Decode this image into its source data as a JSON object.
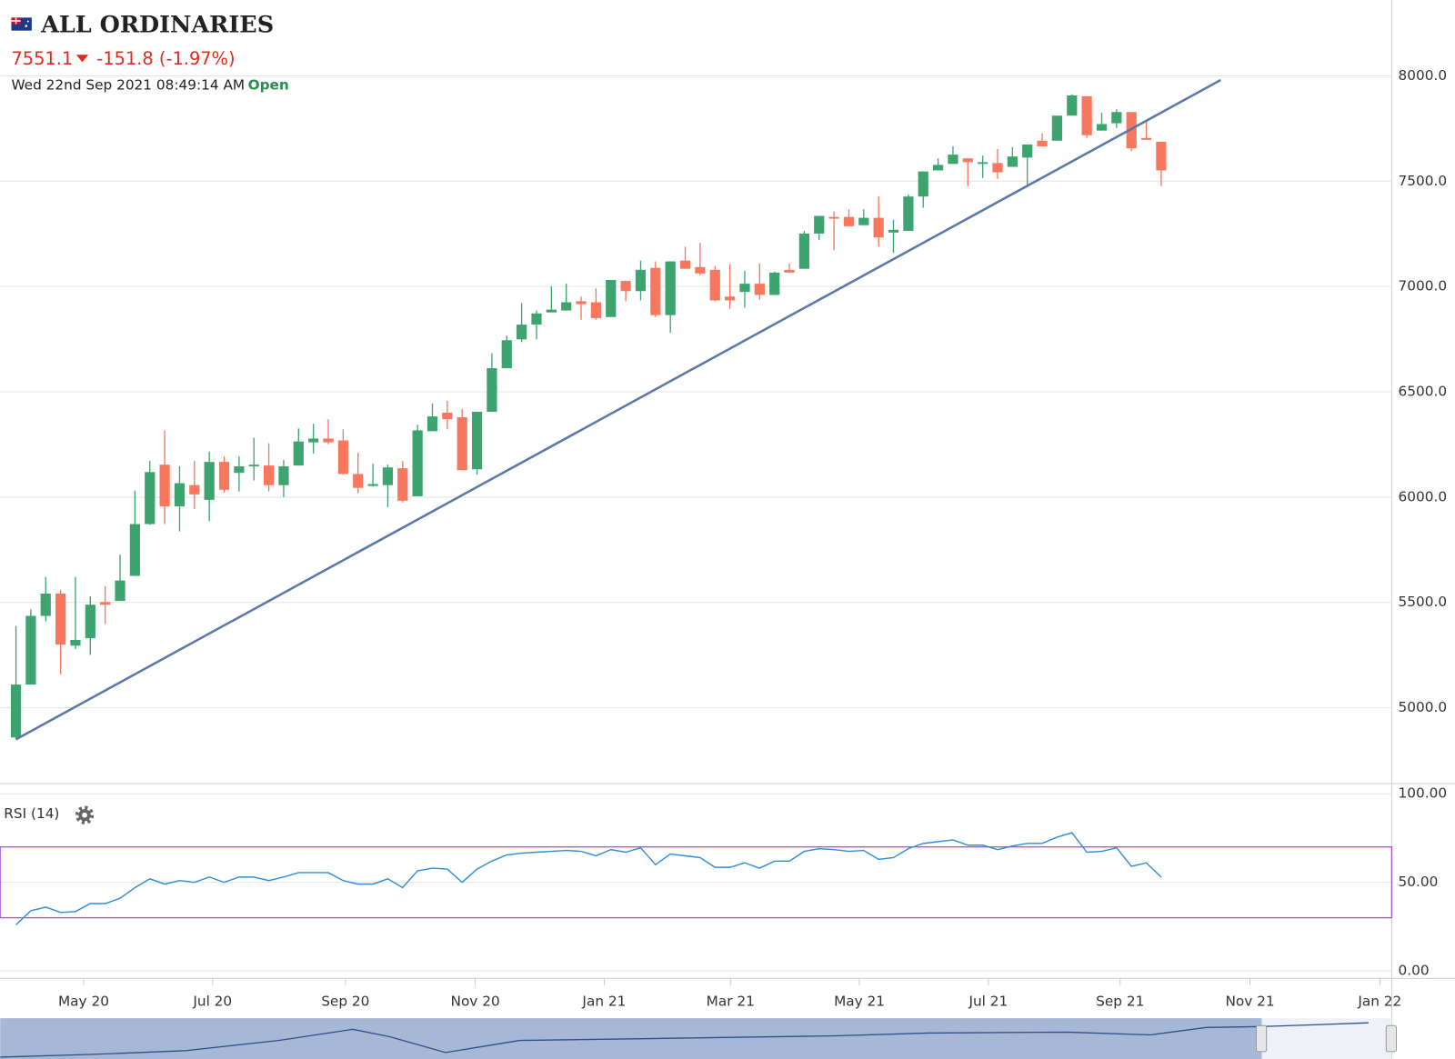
{
  "header": {
    "title": "ALL ORDINARIES",
    "price": "7551.1",
    "change": "-151.8 (-1.97%)",
    "timestamp": "Wed 22nd Sep 2021 08:49:14 AM",
    "status": "Open"
  },
  "chart_data": [
    {
      "type": "candlestick",
      "up_color": "#3ea46f",
      "down_color": "#f7775f",
      "open": [
        4859,
        5110,
        5436,
        5542,
        5295,
        5330,
        5502,
        5507,
        5626,
        5872,
        6154,
        5956,
        6057,
        5987,
        6167,
        6115,
        6146,
        6150,
        6057,
        6150,
        6260,
        6278,
        6269,
        6110,
        6053,
        6057,
        6137,
        6004,
        6313,
        6401,
        6379,
        6132,
        6405,
        6612,
        6749,
        6819,
        6877,
        6886,
        6930,
        6925,
        6855,
        7026,
        6978,
        7088,
        6864,
        7123,
        7092,
        7079,
        6952,
        6974,
        7013,
        6960,
        7079,
        7084,
        7251,
        7330,
        7330,
        7291,
        7326,
        7256,
        7264,
        7427,
        7551,
        7582,
        7608,
        7582,
        7586,
        7568,
        7612,
        7692,
        7692,
        7811,
        7903,
        7740,
        7775,
        7828,
        7705,
        7687
      ],
      "high": [
        5388,
        5467,
        5621,
        5560,
        5621,
        5529,
        5577,
        5727,
        6031,
        6172,
        6317,
        6146,
        6172,
        6216,
        6194,
        6194,
        6282,
        6256,
        6176,
        6326,
        6348,
        6370,
        6322,
        6212,
        6159,
        6154,
        6172,
        6344,
        6445,
        6458,
        6418,
        6405,
        6683,
        6767,
        6921,
        6886,
        7000,
        7013,
        6952,
        6991,
        7031,
        7026,
        7123,
        7119,
        7119,
        7189,
        7207,
        7097,
        7106,
        7075,
        7110,
        7070,
        7110,
        7264,
        7335,
        7357,
        7366,
        7366,
        7427,
        7317,
        7436,
        7546,
        7608,
        7665,
        7608,
        7621,
        7652,
        7661,
        7674,
        7727,
        7811,
        7912,
        7903,
        7824,
        7841,
        7828,
        7780,
        7687
      ],
      "low": [
        4850,
        5110,
        5410,
        5159,
        5278,
        5251,
        5397,
        5507,
        5626,
        5868,
        5872,
        5837,
        5943,
        5886,
        6022,
        6027,
        6079,
        6027,
        6000,
        6150,
        6207,
        6251,
        6106,
        6018,
        6049,
        5952,
        5974,
        6004,
        6313,
        6322,
        6128,
        6106,
        6405,
        6612,
        6736,
        6749,
        6877,
        6886,
        6842,
        6842,
        6855,
        6930,
        6934,
        6855,
        6780,
        7084,
        7053,
        6930,
        6894,
        6899,
        6938,
        6960,
        7066,
        7084,
        7220,
        7172,
        7286,
        7291,
        7189,
        7159,
        7264,
        7374,
        7551,
        7582,
        7476,
        7515,
        7511,
        7568,
        7480,
        7665,
        7692,
        7811,
        7705,
        7740,
        7753,
        7643,
        7696,
        7476
      ],
      "close": [
        5110,
        5436,
        5542,
        5300,
        5322,
        5489,
        5489,
        5604,
        5872,
        6119,
        5956,
        6066,
        6013,
        6167,
        6035,
        6146,
        6154,
        6057,
        6146,
        6264,
        6278,
        6260,
        6110,
        6044,
        6062,
        6141,
        5983,
        6317,
        6383,
        6370,
        6128,
        6405,
        6612,
        6745,
        6819,
        6872,
        6890,
        6925,
        6916,
        6850,
        7031,
        6978,
        7079,
        6864,
        7119,
        7084,
        7062,
        6934,
        6934,
        7013,
        6960,
        7066,
        7066,
        7251,
        7335,
        7322,
        7286,
        7326,
        7233,
        7269,
        7427,
        7546,
        7577,
        7626,
        7590,
        7590,
        7542,
        7617,
        7674,
        7665,
        7811,
        7907,
        7718,
        7771,
        7828,
        7656,
        7696,
        7551
      ],
      "trendline": {
        "x": [
          0,
          81
        ],
        "values": [
          4850,
          7980
        ],
        "color": "#5b78a8"
      },
      "xlim": [
        -1.06,
        92.5
      ],
      "xticks": [
        {
          "value": 4.55,
          "label": "May 20"
        },
        {
          "value": 13.22,
          "label": "Jul 20"
        },
        {
          "value": 22.15,
          "label": "Sep 20"
        },
        {
          "value": 30.88,
          "label": "Nov 20"
        },
        {
          "value": 39.55,
          "label": "Jan 21"
        },
        {
          "value": 48.04,
          "label": "Mar 21"
        },
        {
          "value": 56.71,
          "label": "May 21"
        },
        {
          "value": 65.38,
          "label": "Jul 21"
        },
        {
          "value": 74.24,
          "label": "Sep 21"
        },
        {
          "value": 82.97,
          "label": "Nov 21"
        },
        {
          "value": 91.7,
          "label": "Jan 22"
        }
      ],
      "ylim": [
        4640,
        8360
      ],
      "yticks": [
        {
          "value": 5000,
          "label": "5000.0"
        },
        {
          "value": 5500,
          "label": "5500.0"
        },
        {
          "value": 6000,
          "label": "6000.0"
        },
        {
          "value": 6500,
          "label": "6500.0"
        },
        {
          "value": 7000,
          "label": "7000.0"
        },
        {
          "value": 7500,
          "label": "7500.0"
        },
        {
          "value": 8000,
          "label": "8000.0"
        }
      ],
      "grid": true
    },
    {
      "type": "line",
      "title": "RSI (14)",
      "color": "#2d8ddc",
      "values": [
        26,
        34,
        36,
        33,
        33.5,
        38,
        38,
        41,
        47,
        52,
        49,
        51,
        50,
        53,
        50,
        53,
        53,
        51,
        53,
        55.5,
        55.5,
        55.5,
        51,
        49,
        49,
        52,
        47,
        56.5,
        58,
        57.5,
        50,
        57.5,
        62,
        65.5,
        66.5,
        67,
        67.5,
        68,
        67.5,
        65,
        68.5,
        67,
        69.5,
        60,
        66,
        65,
        64,
        58.5,
        58.5,
        61,
        58,
        62,
        62,
        67.5,
        69,
        68.5,
        67.5,
        68,
        63,
        64,
        69,
        72,
        73,
        74,
        71,
        71,
        68.5,
        70.5,
        72,
        72,
        75.5,
        78,
        67,
        67.5,
        69.5,
        59,
        61,
        53
      ],
      "levels": [
        30,
        70
      ],
      "level_color": "#a259d9",
      "ylim": [
        0,
        100
      ],
      "yticks": [
        {
          "value": 0,
          "label": "0.00"
        },
        {
          "value": 50,
          "label": "50.00"
        },
        {
          "value": 100,
          "label": "100.00"
        }
      ],
      "grid": true
    }
  ]
}
